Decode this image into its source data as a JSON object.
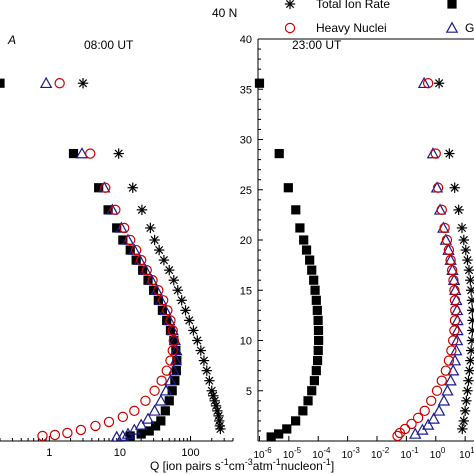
{
  "figure": {
    "title": "40 N",
    "xlabel_main": "Q [ion pairs s",
    "xlabel_parts": [
      "Q [ion pairs s",
      "-1",
      "cm",
      "-3",
      "atm",
      "-1",
      "nucleon",
      "-1",
      "]"
    ]
  },
  "legend": {
    "items": [
      {
        "marker": "asterisk",
        "label": "Total Ion Rate",
        "color": "#000000"
      },
      {
        "marker": "circle",
        "label": "Heavy Nuclei",
        "color": "#cc0000"
      },
      {
        "marker": "square",
        "label": "",
        "color": "#000000"
      },
      {
        "marker": "triangle",
        "label": "G",
        "color": "#1a1a8c"
      }
    ]
  },
  "chart_data": [
    {
      "type": "scatter",
      "panel_label": "A",
      "title": "08:00 UT",
      "xscale": "log",
      "xlim": [
        0.2,
        400
      ],
      "ylim": [
        0,
        40
      ],
      "x_ticks": [
        {
          "value": 1,
          "label": "1"
        },
        {
          "value": 10,
          "label": "10"
        },
        {
          "value": 100,
          "label": "100"
        }
      ],
      "series": [
        {
          "name": "Total Ion Rate",
          "marker": "asterisk",
          "color": "#000000",
          "points": [
            [
              3.0,
              35.6
            ],
            [
              9.6,
              28.6
            ],
            [
              15.2,
              25.2
            ],
            [
              20.5,
              23.0
            ],
            [
              27.0,
              21.2
            ],
            [
              31,
              20
            ],
            [
              36,
              19
            ],
            [
              42,
              18
            ],
            [
              50,
              17
            ],
            [
              58,
              16
            ],
            [
              66,
              15
            ],
            [
              75,
              14
            ],
            [
              85,
              13
            ],
            [
              96,
              12
            ],
            [
              110,
              11
            ],
            [
              125,
              10
            ],
            [
              140,
              9
            ],
            [
              155,
              8
            ],
            [
              170,
              7
            ],
            [
              185,
              6
            ],
            [
              200,
              5
            ],
            [
              210,
              4.5
            ],
            [
              220,
              4
            ],
            [
              230,
              3.5
            ],
            [
              240,
              3
            ],
            [
              250,
              2.5
            ],
            [
              255,
              2
            ],
            [
              260,
              1.5
            ],
            [
              265,
              1.2
            ]
          ]
        },
        {
          "name": "",
          "marker": "square",
          "color": "#000000",
          "points": [
            [
              0.2,
              35.6
            ],
            [
              2.2,
              28.6
            ],
            [
              5.0,
              25.2
            ],
            [
              6.8,
              23.0
            ],
            [
              9.0,
              21.2
            ],
            [
              11,
              20
            ],
            [
              14,
              19
            ],
            [
              17,
              18
            ],
            [
              21,
              17
            ],
            [
              25,
              16
            ],
            [
              30,
              15
            ],
            [
              35,
              14
            ],
            [
              40,
              13
            ],
            [
              46,
              12
            ],
            [
              52,
              11
            ],
            [
              58,
              10
            ],
            [
              62,
              9
            ],
            [
              64,
              8
            ],
            [
              63,
              7
            ],
            [
              60,
              6
            ],
            [
              55,
              5
            ],
            [
              50,
              4
            ],
            [
              44,
              3
            ],
            [
              38,
              2
            ],
            [
              32,
              1.5
            ],
            [
              26,
              1
            ],
            [
              20,
              0.7
            ],
            [
              14,
              0.5
            ]
          ]
        },
        {
          "name": "",
          "marker": "triangle",
          "color": "#1a1a8c",
          "points": [
            [
              0.9,
              35.6
            ],
            [
              2.9,
              28.6
            ],
            [
              6.0,
              25.2
            ],
            [
              7.8,
              23.0
            ],
            [
              10.5,
              21.2
            ],
            [
              13,
              20
            ],
            [
              16,
              19
            ],
            [
              19,
              18
            ],
            [
              23,
              17
            ],
            [
              28,
              16
            ],
            [
              33,
              15
            ],
            [
              38,
              14
            ],
            [
              44,
              13
            ],
            [
              50,
              12
            ],
            [
              56,
              11
            ],
            [
              60,
              10
            ],
            [
              63,
              9
            ],
            [
              62,
              8
            ],
            [
              58,
              7
            ],
            [
              52,
              6
            ],
            [
              45,
              5
            ],
            [
              38,
              4
            ],
            [
              31,
              3
            ],
            [
              25,
              2.2
            ],
            [
              20,
              1.6
            ],
            [
              16,
              1.1
            ],
            [
              13,
              0.7
            ],
            [
              11,
              0.5
            ],
            [
              9,
              0.4
            ]
          ]
        },
        {
          "name": "Heavy Nuclei",
          "marker": "circle",
          "color": "#cc0000",
          "points": [
            [
              1.4,
              35.6
            ],
            [
              3.8,
              28.6
            ],
            [
              6.2,
              25.2
            ],
            [
              8.6,
              23.0
            ],
            [
              11.5,
              21.2
            ],
            [
              14,
              20
            ],
            [
              17,
              19
            ],
            [
              20,
              18
            ],
            [
              24,
              17
            ],
            [
              29,
              16
            ],
            [
              35,
              15
            ],
            [
              41,
              14
            ],
            [
              47,
              13
            ],
            [
              52,
              12
            ],
            [
              56,
              11
            ],
            [
              58,
              10
            ],
            [
              56,
              9
            ],
            [
              52,
              8
            ],
            [
              46,
              7
            ],
            [
              39,
              6
            ],
            [
              31,
              5
            ],
            [
              23,
              4
            ],
            [
              16,
              3
            ],
            [
              11,
              2.4
            ],
            [
              7,
              1.9
            ],
            [
              4.5,
              1.5
            ],
            [
              2.8,
              1.1
            ],
            [
              1.8,
              0.8
            ],
            [
              1.2,
              0.6
            ],
            [
              0.8,
              0.5
            ]
          ]
        }
      ]
    },
    {
      "type": "scatter",
      "title": "23:00 UT",
      "xscale": "log",
      "xlim": [
        1e-06,
        20
      ],
      "ylim": [
        0,
        40
      ],
      "y_ticks": [
        5,
        10,
        15,
        20,
        25,
        30,
        35,
        40
      ],
      "x_ticks": [
        {
          "exp": "-6"
        },
        {
          "exp": "-5"
        },
        {
          "exp": "-4"
        },
        {
          "exp": "-3"
        },
        {
          "exp": "-2"
        },
        {
          "exp": "-1"
        },
        {
          "exp": "0"
        },
        {
          "exp": "1"
        }
      ],
      "series": [
        {
          "name": "",
          "marker": "square",
          "color": "#000000",
          "points": [
            [
              1e-06,
              35.6
            ],
            [
              4.7e-06,
              28.6
            ],
            [
              9.6e-06,
              25.2
            ],
            [
              1.72e-05,
              23.0
            ],
            [
              2.38e-05,
              21.2
            ],
            [
              3.2e-05,
              20
            ],
            [
              4e-05,
              19
            ],
            [
              5.1e-05,
              18
            ],
            [
              6e-05,
              17
            ],
            [
              7e-05,
              16
            ],
            [
              7.8e-05,
              15
            ],
            [
              8.6e-05,
              14
            ],
            [
              9.3e-05,
              13
            ],
            [
              9.9e-05,
              12
            ],
            [
              0.000102,
              11
            ],
            [
              0.000103,
              10
            ],
            [
              0.0001,
              9
            ],
            [
              9.5e-05,
              8
            ],
            [
              8.6e-05,
              7
            ],
            [
              7.4e-05,
              6
            ],
            [
              6e-05,
              5
            ],
            [
              4.5e-05,
              4
            ],
            [
              3e-05,
              3
            ],
            [
              1.7e-05,
              2
            ],
            [
              8.5e-06,
              1.2
            ],
            [
              4.5e-06,
              0.7
            ],
            [
              2.5e-06,
              0.4
            ]
          ]
        },
        {
          "name": "",
          "marker": "triangle",
          "color": "#1a1a8c",
          "points": [
            [
              0.4,
              35.6
            ],
            [
              0.8,
              28.6
            ],
            [
              1.1,
              25.2
            ],
            [
              1.4,
              23.0
            ],
            [
              1.8,
              21.2
            ],
            [
              2.2,
              20
            ],
            [
              2.7,
              19
            ],
            [
              3.2,
              18
            ],
            [
              3.7,
              17
            ],
            [
              4.2,
              16
            ],
            [
              4.6,
              15
            ],
            [
              5,
              14
            ],
            [
              5.3,
              13
            ],
            [
              5.5,
              12
            ],
            [
              5.5,
              11
            ],
            [
              5.3,
              10
            ],
            [
              5,
              9
            ],
            [
              4.5,
              8
            ],
            [
              3.9,
              7
            ],
            [
              3.2,
              6
            ],
            [
              2.5,
              5
            ],
            [
              1.9,
              4
            ],
            [
              1.3,
              3
            ],
            [
              0.85,
              2.2
            ],
            [
              0.55,
              1.6
            ],
            [
              0.35,
              1.1
            ],
            [
              0.2,
              0.7
            ]
          ]
        },
        {
          "name": "Heavy Nuclei",
          "marker": "circle",
          "color": "#cc0000",
          "points": [
            [
              0.55,
              35.6
            ],
            [
              1.0,
              28.6
            ],
            [
              1.2,
              25.2
            ],
            [
              1.6,
              23.0
            ],
            [
              2.0,
              21.2
            ],
            [
              2.4,
              20
            ],
            [
              2.8,
              19
            ],
            [
              3.2,
              18
            ],
            [
              3.6,
              17
            ],
            [
              4,
              16
            ],
            [
              4.3,
              15
            ],
            [
              4.5,
              14
            ],
            [
              4.6,
              13
            ],
            [
              4.5,
              12
            ],
            [
              4.3,
              11
            ],
            [
              3.9,
              10
            ],
            [
              3.4,
              9
            ],
            [
              2.8,
              8
            ],
            [
              2.2,
              7
            ],
            [
              1.6,
              6
            ],
            [
              1.1,
              5
            ],
            [
              0.7,
              4
            ],
            [
              0.42,
              3
            ],
            [
              0.25,
              2.3
            ],
            [
              0.15,
              1.7
            ],
            [
              0.09,
              1.2
            ],
            [
              0.06,
              0.8
            ],
            [
              0.05,
              0.5
            ]
          ]
        },
        {
          "name": "Total Ion Rate",
          "marker": "asterisk",
          "color": "#000000",
          "points": [
            [
              1.3,
              35.6
            ],
            [
              2.9,
              28.6
            ],
            [
              4.4,
              25.2
            ],
            [
              6.0,
              23.0
            ],
            [
              7.8,
              21.2
            ],
            [
              9,
              20
            ],
            [
              10.5,
              19
            ],
            [
              12,
              18
            ],
            [
              13.5,
              17
            ],
            [
              15,
              16
            ],
            [
              16,
              15
            ],
            [
              17,
              14
            ],
            [
              17.5,
              13
            ],
            [
              17.8,
              12
            ],
            [
              17.6,
              11
            ],
            [
              17,
              10
            ],
            [
              16,
              9
            ],
            [
              15,
              8
            ],
            [
              14,
              7
            ],
            [
              13,
              6
            ],
            [
              12,
              5
            ],
            [
              11,
              4
            ],
            [
              10,
              3
            ],
            [
              9,
              2
            ],
            [
              8,
              1.2
            ]
          ]
        }
      ]
    }
  ]
}
